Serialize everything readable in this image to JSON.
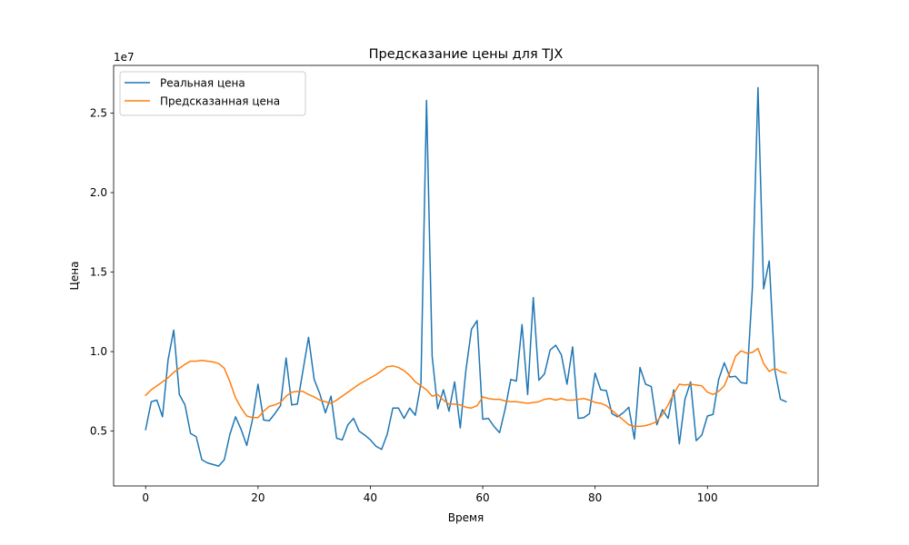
{
  "chart_data": {
    "type": "line",
    "title": "Предсказание цены для TJX",
    "xlabel": "Время",
    "ylabel": "Цена",
    "offset_text": "1e7",
    "xlim": [
      -5.7,
      119.7
    ],
    "ylim": [
      1550000.0,
      28000000.0
    ],
    "x_ticks": [
      0,
      20,
      40,
      60,
      80,
      100
    ],
    "y_ticks": [
      5000000,
      10000000,
      15000000,
      20000000,
      25000000
    ],
    "y_tick_labels": [
      "0.5",
      "1.0",
      "1.5",
      "2.0",
      "2.5"
    ],
    "grid": false,
    "legend_position": "upper-left",
    "series": [
      {
        "name": "Реальная цена",
        "color": "#1f77b4",
        "values": [
          5100000,
          6850000,
          6950000,
          5900000,
          9500000,
          11350000,
          7300000,
          6650000,
          4850000,
          4650000,
          3200000,
          3000000,
          2900000,
          2800000,
          3200000,
          4800000,
          5900000,
          5100000,
          4100000,
          5700000,
          7950000,
          5700000,
          5650000,
          6100000,
          6600000,
          9600000,
          6650000,
          6700000,
          8800000,
          10900000,
          8250000,
          7350000,
          6150000,
          7200000,
          4550000,
          4450000,
          5400000,
          5800000,
          5000000,
          4750000,
          4450000,
          4050000,
          3850000,
          4800000,
          6450000,
          6450000,
          5800000,
          6450000,
          6000000,
          8000000,
          25800000,
          9700000,
          6400000,
          7600000,
          6250000,
          8100000,
          5200000,
          8800000,
          11400000,
          11950000,
          5750000,
          5800000,
          5300000,
          4900000,
          6400000,
          8250000,
          8150000,
          11700000,
          7300000,
          13400000,
          8200000,
          8600000,
          10100000,
          10400000,
          9800000,
          7950000,
          10300000,
          5800000,
          5850000,
          6100000,
          8650000,
          7600000,
          7550000,
          6100000,
          5900000,
          6150000,
          6500000,
          4500000,
          9000000,
          7950000,
          7800000,
          5400000,
          6350000,
          5800000,
          7600000,
          4200000,
          7000000,
          8100000,
          4400000,
          4750000,
          5950000,
          6050000,
          8250000,
          9300000,
          8400000,
          8450000,
          8050000,
          8000000,
          14000000,
          26600000,
          13950000,
          15700000,
          8850000,
          7000000,
          6850000
        ]
      },
      {
        "name": "Предсказанная цена",
        "color": "#ff7f0e",
        "values": [
          7250000,
          7600000,
          7850000,
          8100000,
          8350000,
          8700000,
          8950000,
          9200000,
          9400000,
          9400000,
          9450000,
          9400000,
          9350000,
          9250000,
          8950000,
          8100000,
          7100000,
          6450000,
          5950000,
          5850000,
          5850000,
          6250000,
          6550000,
          6650000,
          6800000,
          7200000,
          7450000,
          7500000,
          7500000,
          7300000,
          7150000,
          6950000,
          6850000,
          6750000,
          6950000,
          7200000,
          7450000,
          7700000,
          7950000,
          8150000,
          8350000,
          8550000,
          8800000,
          9050000,
          9100000,
          9000000,
          8800000,
          8500000,
          8100000,
          7850000,
          7600000,
          7200000,
          7300000,
          6950000,
          6700000,
          6700000,
          6650000,
          6500000,
          6450000,
          6600000,
          7150000,
          7050000,
          7000000,
          7000000,
          6900000,
          6850000,
          6850000,
          6800000,
          6750000,
          6800000,
          6850000,
          7000000,
          7050000,
          6950000,
          7050000,
          6950000,
          6950000,
          7000000,
          7050000,
          6950000,
          6800000,
          6750000,
          6600000,
          6300000,
          6000000,
          5700000,
          5400000,
          5300000,
          5300000,
          5350000,
          5450000,
          5600000,
          6050000,
          6650000,
          7350000,
          7950000,
          7900000,
          7950000,
          7900000,
          7850000,
          7450000,
          7300000,
          7500000,
          7850000,
          8700000,
          9700000,
          10050000,
          9900000,
          9950000,
          10200000,
          9250000,
          8750000,
          8950000,
          8750000,
          8650000
        ]
      }
    ]
  }
}
